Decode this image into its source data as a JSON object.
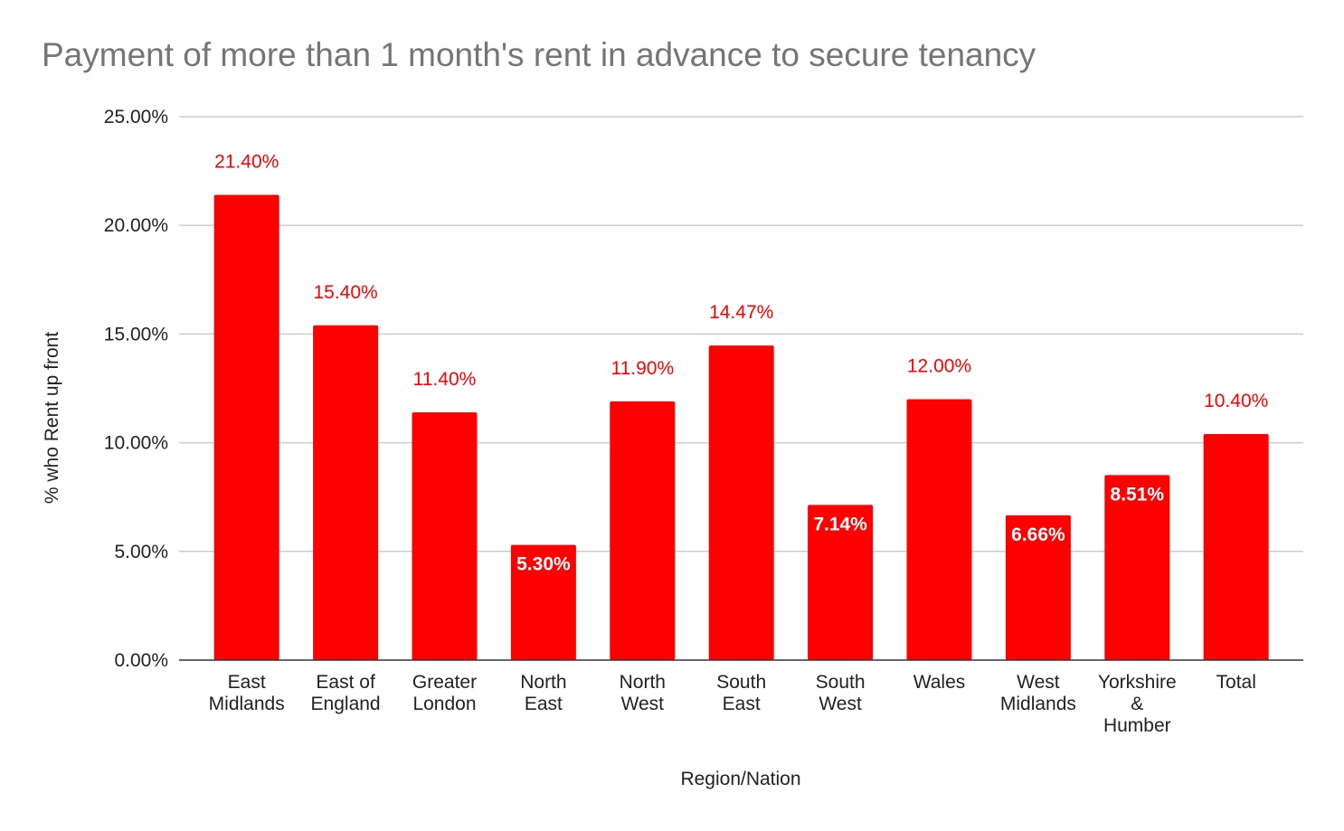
{
  "chart_data": {
    "type": "bar",
    "title": "Payment of more than 1 month's rent in advance to secure tenancy",
    "xlabel": "Region/Nation",
    "ylabel": "% who Rent up front",
    "ylim": [
      0,
      25
    ],
    "yticks": [
      "0.00%",
      "5.00%",
      "10.00%",
      "15.00%",
      "20.00%",
      "25.00%"
    ],
    "grid": true,
    "categories": [
      [
        "East",
        "Midlands"
      ],
      [
        "East of",
        "England"
      ],
      [
        "Greater",
        "London"
      ],
      [
        "North",
        "East"
      ],
      [
        "North",
        "West"
      ],
      [
        "South",
        "East"
      ],
      [
        "South",
        "West"
      ],
      [
        "Wales"
      ],
      [
        "West",
        "Midlands"
      ],
      [
        "Yorkshire",
        "&",
        "Humber"
      ],
      [
        "Total"
      ]
    ],
    "values": [
      21.4,
      15.4,
      11.4,
      5.3,
      11.9,
      14.47,
      7.14,
      12.0,
      6.66,
      8.51,
      10.4
    ],
    "data_labels": [
      "21.40%",
      "15.40%",
      "11.40%",
      "5.30%",
      "11.90%",
      "14.47%",
      "7.14%",
      "12.00%",
      "6.66%",
      "8.51%",
      "10.40%"
    ],
    "colors": {
      "bar": "#ff0000",
      "label_outside": "#ff0000",
      "label_inside": "#ffffff",
      "grid": "#cccccc",
      "axis": "#333333",
      "title": "#757575",
      "text": "#222222"
    }
  }
}
